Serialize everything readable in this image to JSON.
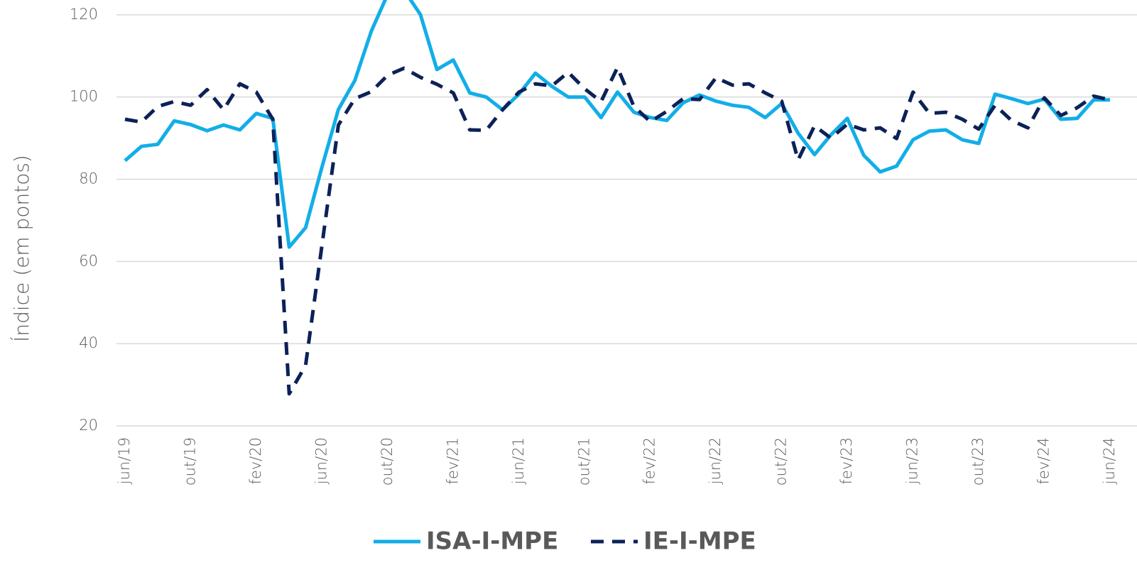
{
  "chart_data": {
    "type": "line",
    "y_label": "Índice (em pontos)",
    "categories": [
      "jun/19",
      null,
      null,
      null,
      "out/19",
      null,
      null,
      null,
      "fev/20",
      null,
      null,
      null,
      "jun/20",
      null,
      null,
      null,
      "out/20",
      null,
      null,
      null,
      "fev/21",
      null,
      null,
      null,
      "jun/21",
      null,
      null,
      null,
      "out/21",
      null,
      null,
      null,
      "fev/22",
      null,
      null,
      null,
      "jun/22",
      null,
      null,
      null,
      "out/22",
      null,
      null,
      null,
      "fev/23",
      null,
      null,
      null,
      "jun/23",
      null,
      null,
      null,
      "out/23",
      null,
      null,
      null,
      "fev/24",
      null,
      null,
      null,
      "jun/24"
    ],
    "series": [
      {
        "name": "ISA-I-MPE",
        "color": "#12aee8",
        "dash": "solid",
        "values": [
          84.5,
          88,
          88.5,
          94.2,
          93.3,
          91.8,
          93.2,
          92,
          96,
          94.8,
          63.5,
          68.2,
          83,
          97,
          104,
          116,
          125,
          126,
          120,
          106.7,
          109,
          101,
          100,
          96.9,
          100.7,
          105.8,
          102.6,
          100,
          100,
          95,
          101.2,
          96.3,
          95,
          94.3,
          98.6,
          100.5,
          99,
          98,
          97.5,
          95,
          98.4,
          91.2,
          86,
          90.8,
          94.8,
          85.8,
          81.8,
          83.2,
          89.6,
          91.7,
          92,
          89.6,
          88.7,
          100.7,
          99.6,
          98.4,
          99.5,
          94.6,
          94.8,
          99.3,
          99.3
        ]
      },
      {
        "name": "IE-I-MPE",
        "color": "#0c2158",
        "dash": "dashed",
        "values": [
          94.6,
          93.9,
          97.7,
          98.9,
          98,
          101.8,
          96.9,
          103.2,
          101.2,
          94.6,
          27.8,
          34.7,
          64,
          93.2,
          99.6,
          101.3,
          105.3,
          107,
          104.8,
          103.1,
          101,
          92,
          91.9,
          96.9,
          101.2,
          103.2,
          102.7,
          106,
          102,
          98.9,
          107.2,
          97.7,
          94,
          96.5,
          99.6,
          99.4,
          104.7,
          102.9,
          103.2,
          101,
          99,
          84.7,
          93,
          90,
          93.4,
          92,
          92.5,
          89.9,
          101.2,
          96,
          96.3,
          94.6,
          92.2,
          98,
          94.3,
          92.5,
          99.8,
          95.5,
          97.4,
          100.2,
          99.3
        ]
      }
    ],
    "ylim": [
      20,
      123.6
    ],
    "yticks": [
      20,
      40,
      60,
      80,
      100,
      120
    ],
    "grid": true
  }
}
